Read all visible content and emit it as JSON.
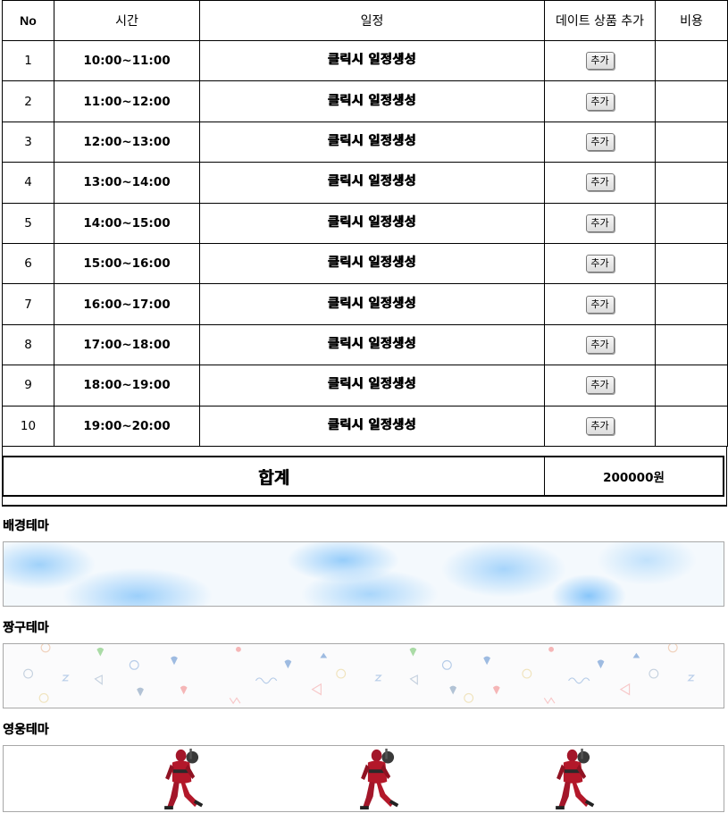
{
  "table": {
    "headers": {
      "no": "No",
      "time": "시간",
      "schedule": "일정",
      "add": "데이트 상품 추가",
      "cost": "비용"
    },
    "rows": [
      {
        "no": "1",
        "time": "10:00~11:00",
        "link": "클릭시 일정생성",
        "button": "추가",
        "cost": ""
      },
      {
        "no": "2",
        "time": "11:00~12:00",
        "link": "클릭시 일정생성",
        "button": "추가",
        "cost": ""
      },
      {
        "no": "3",
        "time": "12:00~13:00",
        "link": "클릭시 일정생성",
        "button": "추가",
        "cost": ""
      },
      {
        "no": "4",
        "time": "13:00~14:00",
        "link": "클릭시 일정생성",
        "button": "추가",
        "cost": ""
      },
      {
        "no": "5",
        "time": "14:00~15:00",
        "link": "클릭시 일정생성",
        "button": "추가",
        "cost": ""
      },
      {
        "no": "6",
        "time": "15:00~16:00",
        "link": "클릭시 일정생성",
        "button": "추가",
        "cost": ""
      },
      {
        "no": "7",
        "time": "16:00~17:00",
        "link": "클릭시 일정생성",
        "button": "추가",
        "cost": ""
      },
      {
        "no": "8",
        "time": "17:00~18:00",
        "link": "클릭시 일정생성",
        "button": "추가",
        "cost": ""
      },
      {
        "no": "9",
        "time": "18:00~19:00",
        "link": "클릭시 일정생성",
        "button": "추가",
        "cost": ""
      },
      {
        "no": "10",
        "time": "19:00~20:00",
        "link": "클릭시 일정생성",
        "button": "추가",
        "cost": ""
      }
    ]
  },
  "total": {
    "label": "합계",
    "value": "200000원"
  },
  "themes": [
    {
      "title": "배경테마",
      "style": "sky-clouds"
    },
    {
      "title": "짱구테마",
      "style": "pastel-shapes-pattern"
    },
    {
      "title": "영웅테마",
      "style": "red-hero-figures"
    }
  ],
  "colors": {
    "sky": "#8ecbf7",
    "pattern_green": "#8fd08a",
    "pattern_blue": "#7fa6d8",
    "pattern_pink": "#f4a0a0",
    "hero_red": "#b3182a"
  }
}
